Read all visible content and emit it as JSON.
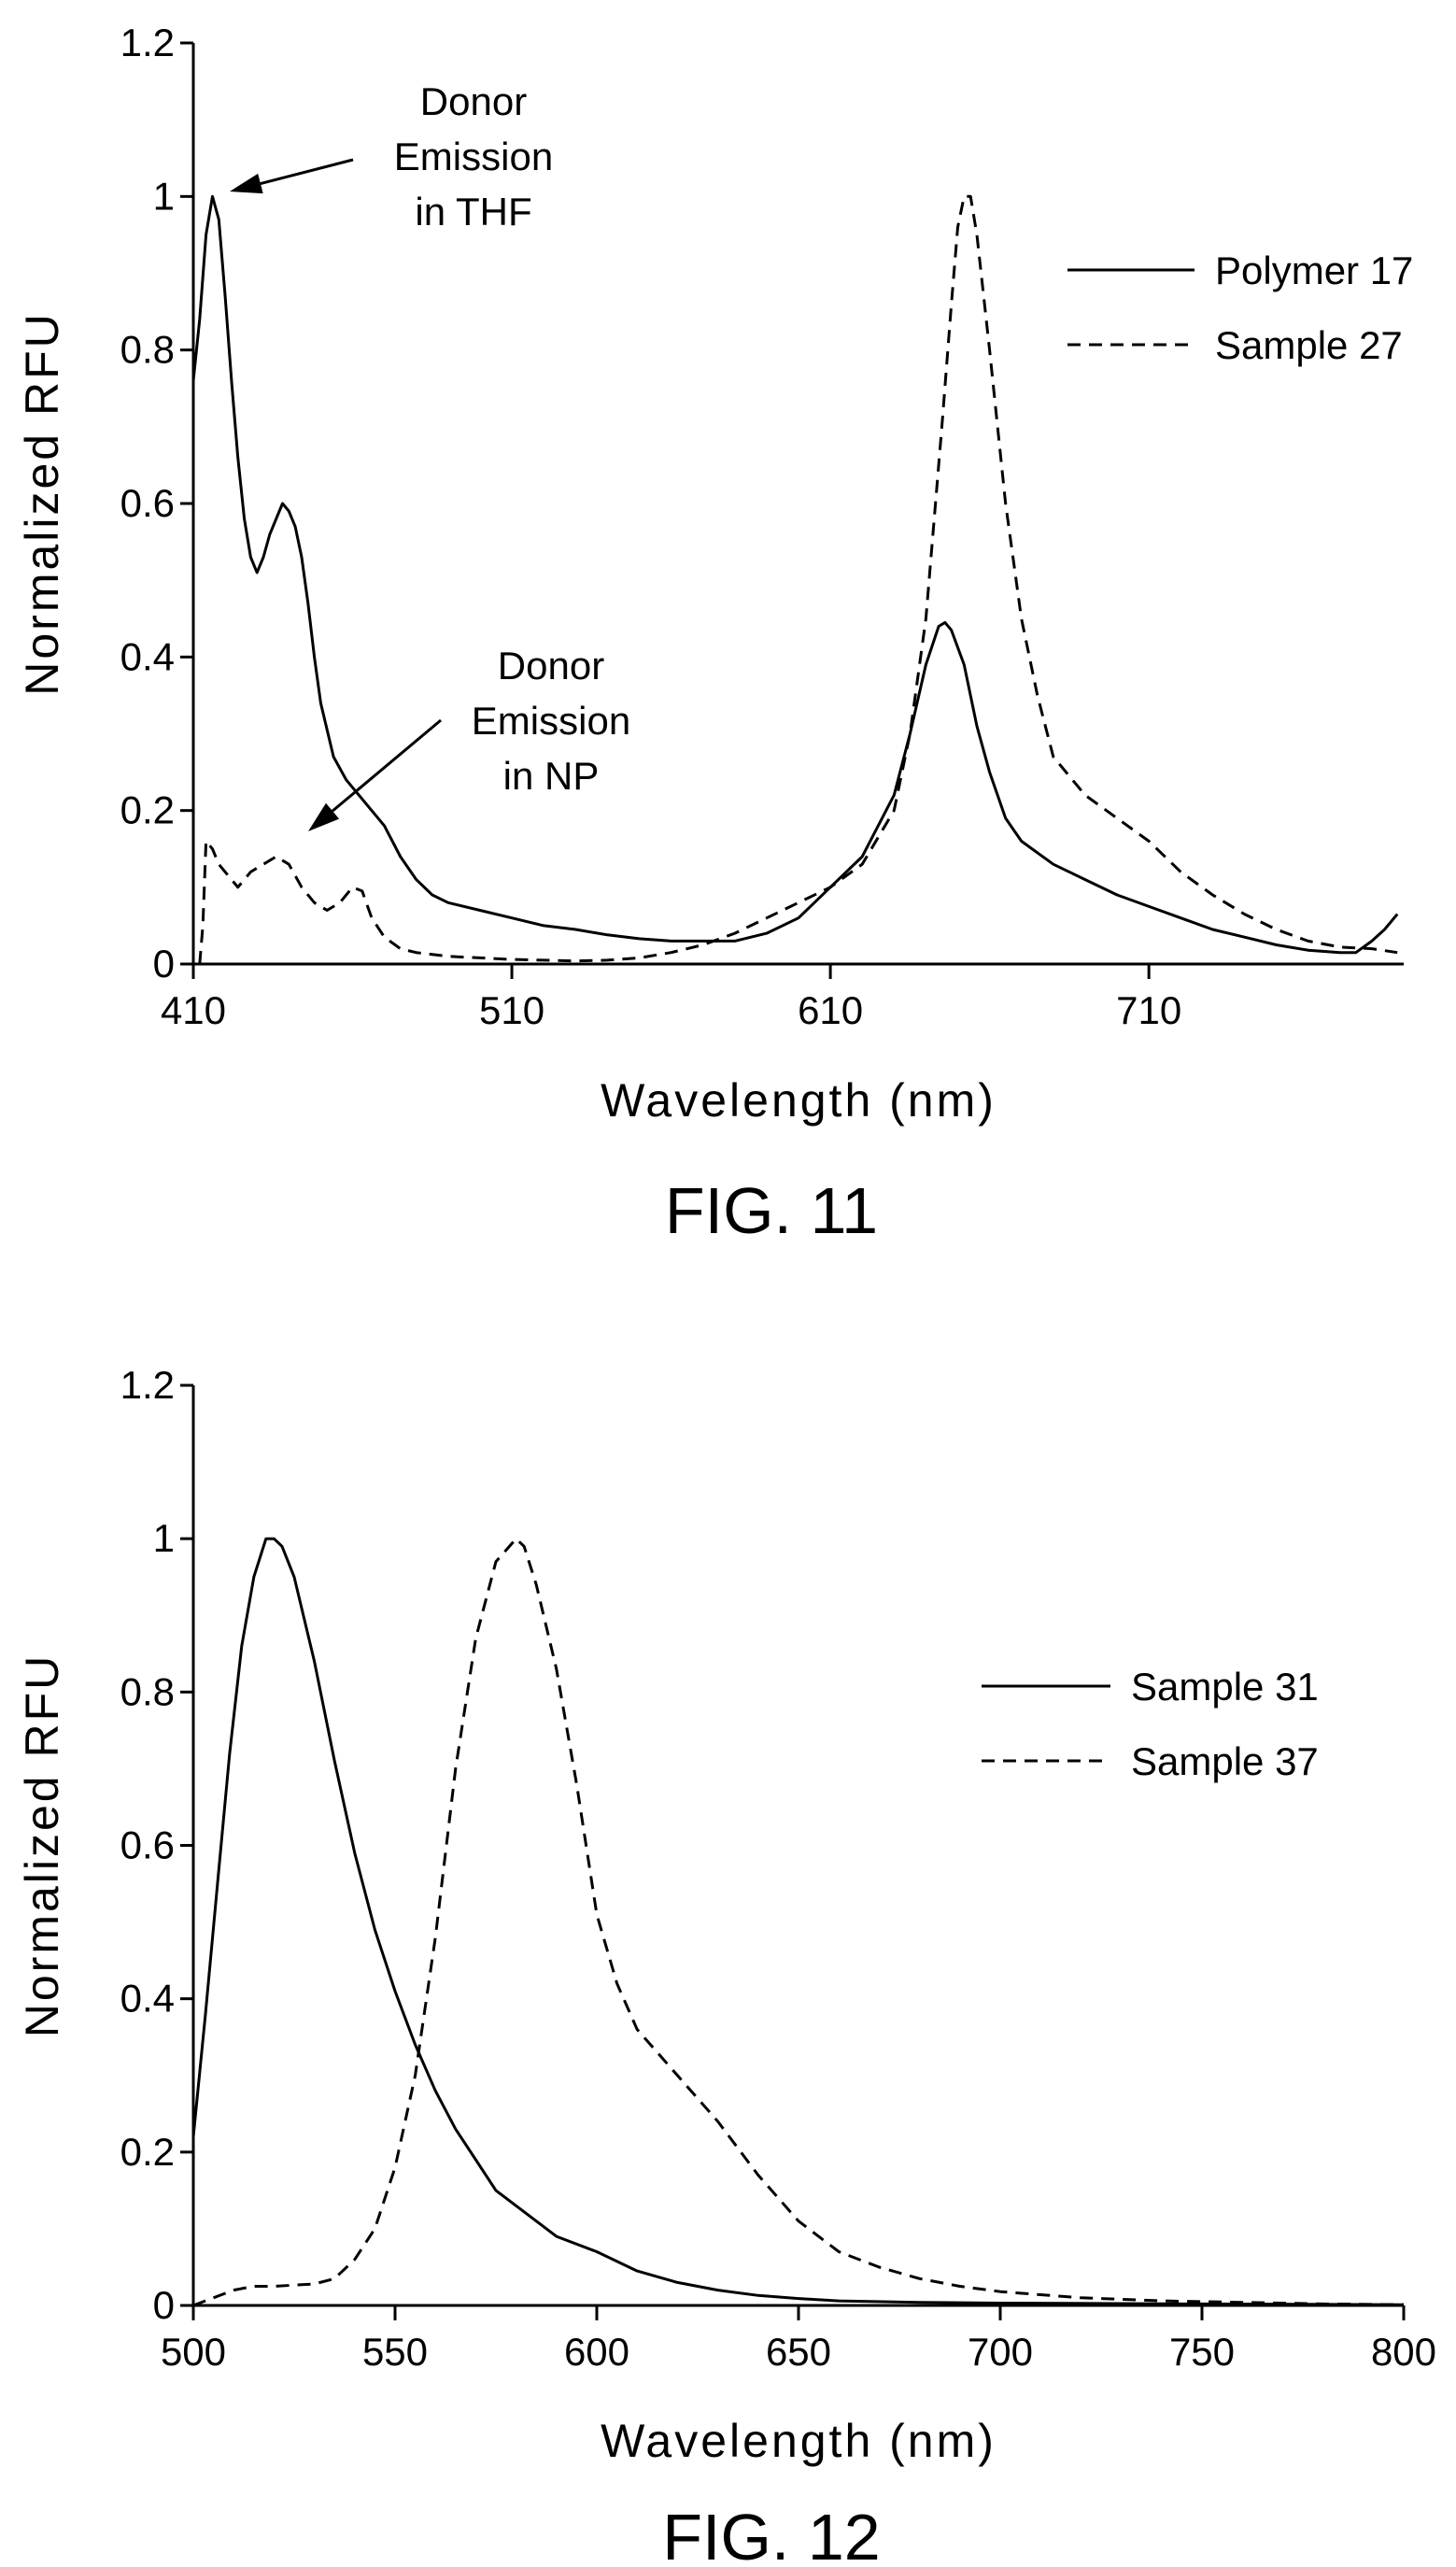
{
  "chart_data": [
    {
      "type": "line",
      "caption": "FIG. 11",
      "xlabel": "Wavelength (nm)",
      "ylabel": "Normalized RFU",
      "xlim": [
        410,
        790
      ],
      "ylim": [
        0,
        1.2
      ],
      "x_ticks": [
        410,
        510,
        610,
        710
      ],
      "x_tick_labels": [
        "410",
        "510",
        "610",
        "710"
      ],
      "y_ticks": [
        0,
        0.2,
        0.4,
        0.6,
        0.8,
        1,
        1.2
      ],
      "y_tick_labels": [
        "0",
        "0.2",
        "0.4",
        "0.6",
        "0.8",
        "1",
        "1.2"
      ],
      "legend_position": "top-right",
      "series": [
        {
          "name": "Polymer 17",
          "style": "solid",
          "points": [
            [
              410,
              0.76
            ],
            [
              412,
              0.84
            ],
            [
              414,
              0.95
            ],
            [
              416,
              1.0
            ],
            [
              418,
              0.97
            ],
            [
              420,
              0.87
            ],
            [
              422,
              0.76
            ],
            [
              424,
              0.66
            ],
            [
              426,
              0.58
            ],
            [
              428,
              0.53
            ],
            [
              430,
              0.51
            ],
            [
              432,
              0.53
            ],
            [
              434,
              0.56
            ],
            [
              436,
              0.58
            ],
            [
              438,
              0.6
            ],
            [
              440,
              0.59
            ],
            [
              442,
              0.57
            ],
            [
              444,
              0.53
            ],
            [
              446,
              0.47
            ],
            [
              448,
              0.4
            ],
            [
              450,
              0.34
            ],
            [
              454,
              0.27
            ],
            [
              458,
              0.24
            ],
            [
              462,
              0.22
            ],
            [
              466,
              0.2
            ],
            [
              470,
              0.18
            ],
            [
              475,
              0.14
            ],
            [
              480,
              0.11
            ],
            [
              485,
              0.09
            ],
            [
              490,
              0.08
            ],
            [
              500,
              0.07
            ],
            [
              510,
              0.06
            ],
            [
              520,
              0.05
            ],
            [
              530,
              0.045
            ],
            [
              540,
              0.038
            ],
            [
              550,
              0.033
            ],
            [
              560,
              0.03
            ],
            [
              570,
              0.03
            ],
            [
              580,
              0.03
            ],
            [
              590,
              0.04
            ],
            [
              600,
              0.06
            ],
            [
              610,
              0.1
            ],
            [
              620,
              0.14
            ],
            [
              630,
              0.22
            ],
            [
              635,
              0.3
            ],
            [
              640,
              0.39
            ],
            [
              644,
              0.44
            ],
            [
              646,
              0.445
            ],
            [
              648,
              0.435
            ],
            [
              652,
              0.39
            ],
            [
              656,
              0.31
            ],
            [
              660,
              0.25
            ],
            [
              665,
              0.19
            ],
            [
              670,
              0.16
            ],
            [
              680,
              0.13
            ],
            [
              690,
              0.11
            ],
            [
              700,
              0.09
            ],
            [
              710,
              0.075
            ],
            [
              720,
              0.06
            ],
            [
              730,
              0.045
            ],
            [
              740,
              0.035
            ],
            [
              750,
              0.025
            ],
            [
              760,
              0.018
            ],
            [
              770,
              0.015
            ],
            [
              775,
              0.015
            ],
            [
              780,
              0.03
            ],
            [
              784,
              0.045
            ],
            [
              788,
              0.065
            ]
          ]
        },
        {
          "name": "Sample 27",
          "style": "dashed",
          "points": [
            [
              412,
              0.0
            ],
            [
              413,
              0.05
            ],
            [
              414,
              0.16
            ],
            [
              416,
              0.15
            ],
            [
              418,
              0.13
            ],
            [
              420,
              0.12
            ],
            [
              424,
              0.1
            ],
            [
              428,
              0.12
            ],
            [
              432,
              0.13
            ],
            [
              436,
              0.14
            ],
            [
              440,
              0.13
            ],
            [
              444,
              0.1
            ],
            [
              448,
              0.08
            ],
            [
              452,
              0.07
            ],
            [
              456,
              0.08
            ],
            [
              460,
              0.1
            ],
            [
              463,
              0.095
            ],
            [
              466,
              0.06
            ],
            [
              470,
              0.035
            ],
            [
              475,
              0.02
            ],
            [
              480,
              0.015
            ],
            [
              490,
              0.01
            ],
            [
              500,
              0.008
            ],
            [
              510,
              0.006
            ],
            [
              520,
              0.005
            ],
            [
              530,
              0.004
            ],
            [
              540,
              0.005
            ],
            [
              550,
              0.008
            ],
            [
              560,
              0.015
            ],
            [
              570,
              0.025
            ],
            [
              580,
              0.04
            ],
            [
              590,
              0.06
            ],
            [
              600,
              0.08
            ],
            [
              610,
              0.1
            ],
            [
              620,
              0.13
            ],
            [
              630,
              0.2
            ],
            [
              635,
              0.3
            ],
            [
              640,
              0.45
            ],
            [
              645,
              0.7
            ],
            [
              648,
              0.86
            ],
            [
              650,
              0.96
            ],
            [
              652,
              1.0
            ],
            [
              654,
              1.0
            ],
            [
              656,
              0.95
            ],
            [
              660,
              0.8
            ],
            [
              665,
              0.6
            ],
            [
              670,
              0.45
            ],
            [
              675,
              0.35
            ],
            [
              680,
              0.27
            ],
            [
              690,
              0.22
            ],
            [
              700,
              0.19
            ],
            [
              710,
              0.16
            ],
            [
              720,
              0.12
            ],
            [
              730,
              0.09
            ],
            [
              740,
              0.065
            ],
            [
              750,
              0.045
            ],
            [
              760,
              0.03
            ],
            [
              770,
              0.022
            ],
            [
              780,
              0.02
            ],
            [
              788,
              0.015
            ]
          ]
        }
      ],
      "annotations": [
        {
          "lines": [
            "Donor",
            "Emission",
            "in THF"
          ],
          "data_point": [
            416,
            1.0
          ]
        },
        {
          "lines": [
            "Donor",
            "Emission",
            "in NP"
          ],
          "data_point": [
            437,
            0.14
          ]
        }
      ]
    },
    {
      "type": "line",
      "caption": "FIG. 12",
      "xlabel": "Wavelength (nm)",
      "ylabel": "Normalized RFU",
      "xlim": [
        500,
        800
      ],
      "ylim": [
        0,
        1.2
      ],
      "x_ticks": [
        500,
        550,
        600,
        650,
        700,
        750,
        800
      ],
      "x_tick_labels": [
        "500",
        "550",
        "600",
        "650",
        "700",
        "750",
        "800"
      ],
      "y_ticks": [
        0,
        0.2,
        0.4,
        0.6,
        0.8,
        1,
        1.2
      ],
      "y_tick_labels": [
        "0",
        "0.2",
        "0.4",
        "0.6",
        "0.8",
        "1",
        "1.2"
      ],
      "legend_position": "top-right",
      "series": [
        {
          "name": "Sample 31",
          "style": "solid",
          "points": [
            [
              500,
              0.22
            ],
            [
              503,
              0.38
            ],
            [
              506,
              0.55
            ],
            [
              509,
              0.72
            ],
            [
              512,
              0.86
            ],
            [
              515,
              0.95
            ],
            [
              518,
              1.0
            ],
            [
              520,
              1.0
            ],
            [
              522,
              0.99
            ],
            [
              525,
              0.95
            ],
            [
              530,
              0.84
            ],
            [
              535,
              0.71
            ],
            [
              540,
              0.59
            ],
            [
              545,
              0.49
            ],
            [
              550,
              0.41
            ],
            [
              555,
              0.34
            ],
            [
              560,
              0.28
            ],
            [
              565,
              0.23
            ],
            [
              570,
              0.19
            ],
            [
              575,
              0.15
            ],
            [
              580,
              0.13
            ],
            [
              590,
              0.09
            ],
            [
              600,
              0.07
            ],
            [
              610,
              0.045
            ],
            [
              620,
              0.03
            ],
            [
              630,
              0.02
            ],
            [
              640,
              0.013
            ],
            [
              650,
              0.009
            ],
            [
              660,
              0.006
            ],
            [
              680,
              0.004
            ],
            [
              700,
              0.003
            ],
            [
              750,
              0.002
            ],
            [
              800,
              0.001
            ]
          ]
        },
        {
          "name": "Sample 37",
          "style": "dashed",
          "points": [
            [
              500,
              0.0
            ],
            [
              505,
              0.01
            ],
            [
              510,
              0.02
            ],
            [
              515,
              0.025
            ],
            [
              520,
              0.025
            ],
            [
              530,
              0.028
            ],
            [
              535,
              0.035
            ],
            [
              540,
              0.06
            ],
            [
              545,
              0.1
            ],
            [
              550,
              0.18
            ],
            [
              555,
              0.3
            ],
            [
              560,
              0.48
            ],
            [
              565,
              0.7
            ],
            [
              570,
              0.87
            ],
            [
              575,
              0.97
            ],
            [
              580,
              1.0
            ],
            [
              582,
              0.99
            ],
            [
              585,
              0.94
            ],
            [
              590,
              0.83
            ],
            [
              595,
              0.68
            ],
            [
              600,
              0.51
            ],
            [
              605,
              0.42
            ],
            [
              610,
              0.36
            ],
            [
              620,
              0.3
            ],
            [
              630,
              0.24
            ],
            [
              640,
              0.17
            ],
            [
              650,
              0.11
            ],
            [
              660,
              0.07
            ],
            [
              670,
              0.05
            ],
            [
              680,
              0.035
            ],
            [
              690,
              0.025
            ],
            [
              700,
              0.018
            ],
            [
              720,
              0.01
            ],
            [
              740,
              0.006
            ],
            [
              760,
              0.004
            ],
            [
              780,
              0.002
            ],
            [
              800,
              0.001
            ]
          ]
        }
      ],
      "annotations": []
    }
  ]
}
